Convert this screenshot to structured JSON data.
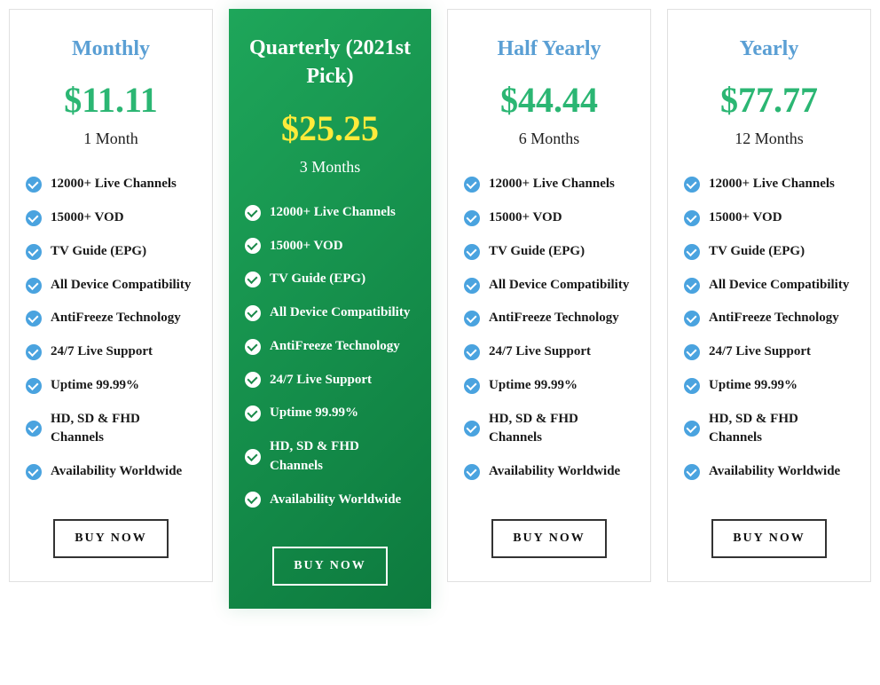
{
  "plans": [
    {
      "title": "Monthly",
      "price": "$11.11",
      "duration": "1 Month",
      "highlight": false,
      "features": [
        "12000+ Live Channels",
        "15000+ VOD",
        "TV Guide (EPG)",
        "All Device Compatibility",
        "AntiFreeze Technology",
        "24/7 Live Support",
        "Uptime 99.99%",
        "HD, SD & FHD Channels",
        "Availability Worldwide"
      ],
      "cta": "BUY NOW"
    },
    {
      "title": "Quarterly (2021st Pick)",
      "price": "$25.25",
      "duration": "3 Months",
      "highlight": true,
      "features": [
        "12000+ Live Channels",
        "15000+ VOD",
        "TV Guide (EPG)",
        "All Device Compatibility",
        "AntiFreeze Technology",
        "24/7 Live Support",
        "Uptime 99.99%",
        "HD, SD & FHD Channels",
        "Availability Worldwide"
      ],
      "cta": "BUY NOW"
    },
    {
      "title": "Half Yearly",
      "price": "$44.44",
      "duration": "6 Months",
      "highlight": false,
      "features": [
        "12000+ Live Channels",
        "15000+ VOD",
        "TV Guide (EPG)",
        "All Device Compatibility",
        "AntiFreeze Technology",
        "24/7 Live Support",
        "Uptime 99.99%",
        "HD, SD & FHD Channels",
        "Availability Worldwide"
      ],
      "cta": "BUY NOW"
    },
    {
      "title": "Yearly",
      "price": "$77.77",
      "duration": "12 Months",
      "highlight": false,
      "features": [
        "12000+ Live Channels",
        "15000+ VOD",
        "TV Guide (EPG)",
        "All Device Compatibility",
        "AntiFreeze Technology",
        "24/7 Live Support",
        "Uptime 99.99%",
        "HD, SD & FHD Channels",
        "Availability Worldwide"
      ],
      "cta": "BUY NOW"
    }
  ],
  "colors": {
    "title_default": "#5a9fd4",
    "price_default": "#2bb673",
    "price_highlight": "#ffeb3b",
    "highlight_bg_start": "#1ea65a",
    "highlight_bg_end": "#0d7a3e",
    "check_default": "#4aa3df",
    "card_border": "#e0e0e0"
  }
}
